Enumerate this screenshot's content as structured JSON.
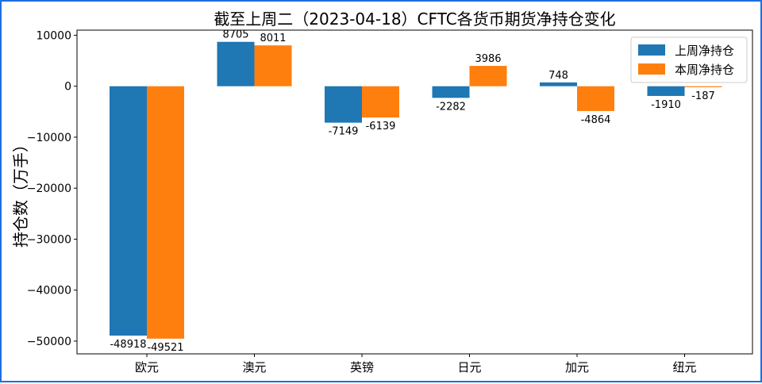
{
  "chart_data": {
    "type": "bar",
    "title": "截至上周二（2023-04-18）CFTC各货币期货净持仓变化",
    "xlabel": "",
    "ylabel": "持仓数（万手）",
    "categories": [
      "欧元",
      "澳元",
      "英镑",
      "日元",
      "加元",
      "纽元"
    ],
    "series": [
      {
        "name": "上周净持仓",
        "color": "#1f77b4",
        "values": [
          -48918,
          8705,
          -7149,
          -2282,
          748,
          -1910
        ]
      },
      {
        "name": "本周净持仓",
        "color": "#ff7f0e",
        "values": [
          -49521,
          8011,
          -6139,
          3986,
          -4864,
          -187
        ]
      }
    ],
    "ylim": [
      -52500,
      11000
    ],
    "yticks": [
      10000,
      0,
      -10000,
      -20000,
      -30000,
      -40000,
      -50000
    ],
    "ytick_labels": [
      "10000",
      "0",
      "−10000",
      "−20000",
      "−30000",
      "−40000",
      "−50000"
    ],
    "legend_position": "top-right",
    "grid": false
  }
}
